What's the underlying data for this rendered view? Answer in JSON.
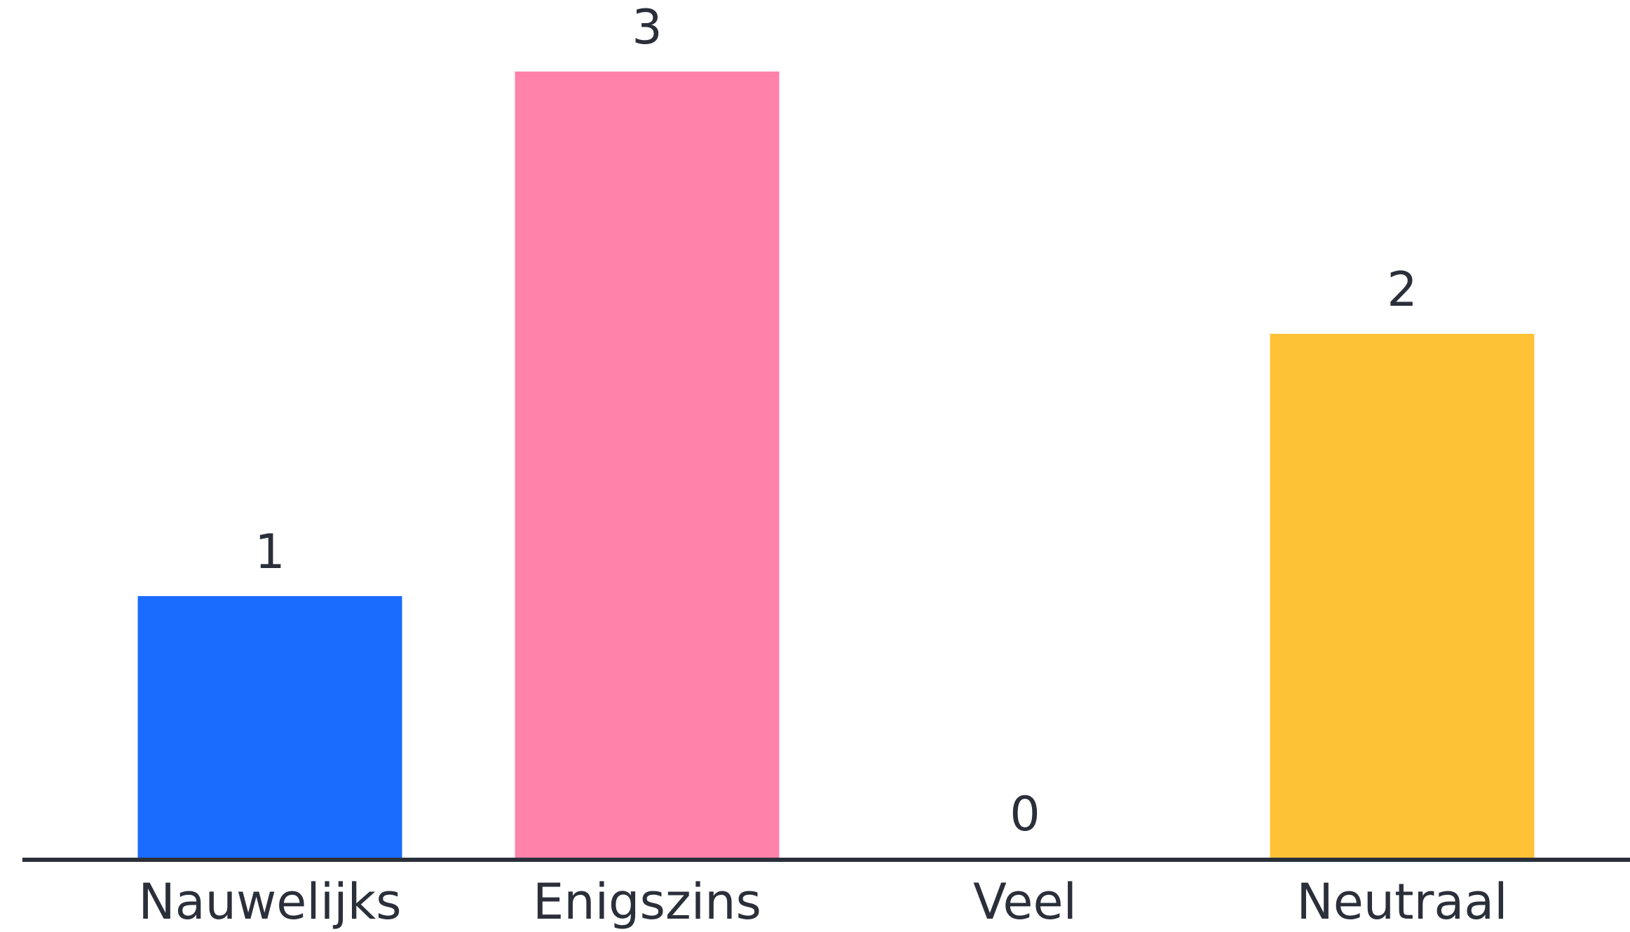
{
  "chart_data": {
    "type": "bar",
    "title": "",
    "xlabel": "",
    "ylabel": "",
    "categories": [
      "Nauwelijks",
      "Enigszins",
      "Veel",
      "Neutraal"
    ],
    "values": [
      1,
      3,
      0,
      2
    ],
    "value_labels": [
      "1",
      "3",
      "0",
      "2"
    ],
    "ylim": [
      0,
      3
    ],
    "grid": false,
    "legend": "none",
    "colors": [
      "#1a6bff",
      "#ff82aa",
      "#7a4fd6",
      "#fdc236"
    ],
    "axis_color": "#2b2f3a",
    "text_color": "#2b2f3a"
  }
}
